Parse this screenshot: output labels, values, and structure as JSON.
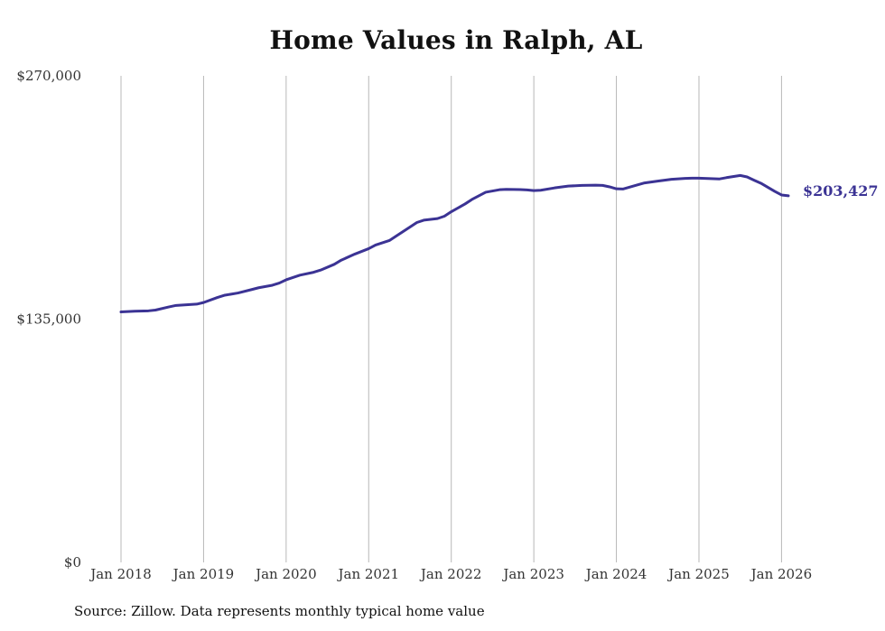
{
  "chart_data": {
    "type": "line",
    "title": "Home Values in Ralph, AL",
    "source": "Source: Zillow. Data represents monthly typical home value",
    "ylim": [
      0,
      270000
    ],
    "yticks": [
      {
        "value": 0,
        "label": "$0"
      },
      {
        "value": 135000,
        "label": "$135,000"
      },
      {
        "value": 270000,
        "label": "$270,000"
      }
    ],
    "xlim": [
      2018.0,
      2026.083
    ],
    "xticks": [
      {
        "value": 2018,
        "label": "Jan 2018"
      },
      {
        "value": 2019,
        "label": "Jan 2019"
      },
      {
        "value": 2020,
        "label": "Jan 2020"
      },
      {
        "value": 2021,
        "label": "Jan 2021"
      },
      {
        "value": 2022,
        "label": "Jan 2022"
      },
      {
        "value": 2023,
        "label": "Jan 2023"
      },
      {
        "value": 2024,
        "label": "Jan 2024"
      },
      {
        "value": 2025,
        "label": "Jan 2025"
      },
      {
        "value": 2026,
        "label": "Jan 2026"
      }
    ],
    "grid": "vertical",
    "line_color": "#3b3394",
    "end_label": "$203,427",
    "series": [
      {
        "name": "Typical home value",
        "points": [
          [
            2018.0,
            139000
          ],
          [
            2018.167,
            139400
          ],
          [
            2018.333,
            139600
          ],
          [
            2018.417,
            140000
          ],
          [
            2018.583,
            141800
          ],
          [
            2018.667,
            142600
          ],
          [
            2018.833,
            143100
          ],
          [
            2018.917,
            143300
          ],
          [
            2019.0,
            144200
          ],
          [
            2019.167,
            147000
          ],
          [
            2019.25,
            148200
          ],
          [
            2019.417,
            149500
          ],
          [
            2019.583,
            151400
          ],
          [
            2019.667,
            152400
          ],
          [
            2019.833,
            153800
          ],
          [
            2019.917,
            155000
          ],
          [
            2020.0,
            156800
          ],
          [
            2020.167,
            159400
          ],
          [
            2020.333,
            161000
          ],
          [
            2020.417,
            162200
          ],
          [
            2020.583,
            165400
          ],
          [
            2020.667,
            167700
          ],
          [
            2020.833,
            171100
          ],
          [
            2020.917,
            172600
          ],
          [
            2021.0,
            174100
          ],
          [
            2021.083,
            176100
          ],
          [
            2021.25,
            178600
          ],
          [
            2021.333,
            181100
          ],
          [
            2021.5,
            186100
          ],
          [
            2021.583,
            188600
          ],
          [
            2021.667,
            189900
          ],
          [
            2021.833,
            190800
          ],
          [
            2021.917,
            192100
          ],
          [
            2022.0,
            194600
          ],
          [
            2022.167,
            198900
          ],
          [
            2022.25,
            201400
          ],
          [
            2022.417,
            205400
          ],
          [
            2022.583,
            206800
          ],
          [
            2022.667,
            207000
          ],
          [
            2022.833,
            206900
          ],
          [
            2022.917,
            206700
          ],
          [
            2023.0,
            206300
          ],
          [
            2023.083,
            206500
          ],
          [
            2023.25,
            207800
          ],
          [
            2023.417,
            208800
          ],
          [
            2023.583,
            209200
          ],
          [
            2023.75,
            209300
          ],
          [
            2023.833,
            209200
          ],
          [
            2023.917,
            208400
          ],
          [
            2024.0,
            207300
          ],
          [
            2024.083,
            207200
          ],
          [
            2024.25,
            209400
          ],
          [
            2024.333,
            210500
          ],
          [
            2024.5,
            211600
          ],
          [
            2024.667,
            212600
          ],
          [
            2024.833,
            213100
          ],
          [
            2024.917,
            213200
          ],
          [
            2025.0,
            213200
          ],
          [
            2025.25,
            212800
          ],
          [
            2025.333,
            213500
          ],
          [
            2025.5,
            214700
          ],
          [
            2025.583,
            213900
          ],
          [
            2025.667,
            212100
          ],
          [
            2025.75,
            210400
          ],
          [
            2025.917,
            205900
          ],
          [
            2026.0,
            203900
          ],
          [
            2026.083,
            203427
          ]
        ]
      }
    ]
  }
}
